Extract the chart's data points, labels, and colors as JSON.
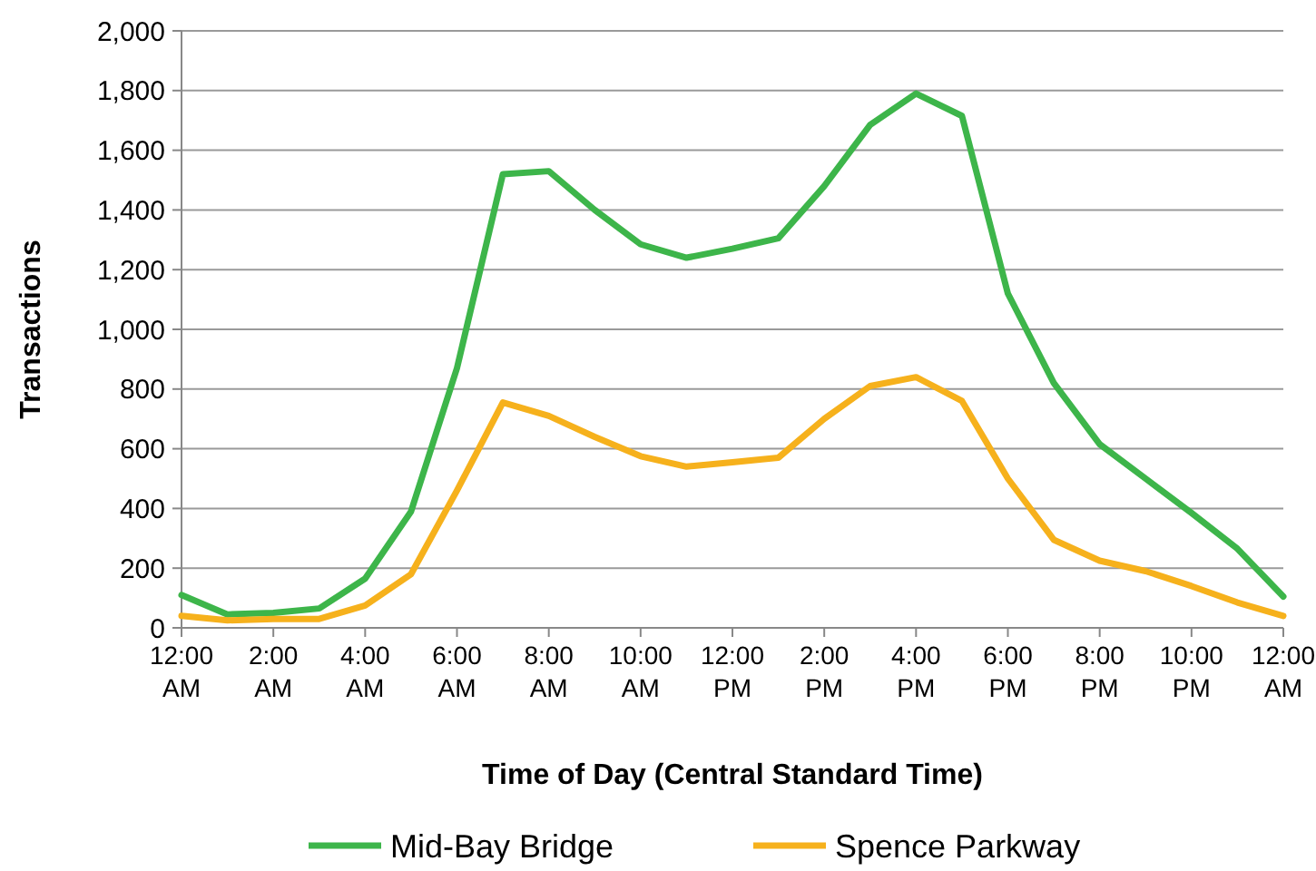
{
  "chart_data": {
    "type": "line",
    "xlabel": "Time of Day (Central Standard Time)",
    "ylabel": "Transactions",
    "x": [
      0,
      1,
      2,
      3,
      4,
      5,
      6,
      7,
      8,
      9,
      10,
      11,
      12,
      13,
      14,
      15,
      16,
      17,
      18,
      19,
      20,
      21,
      22,
      23,
      24
    ],
    "series": [
      {
        "name": "Mid-Bay Bridge",
        "color": "#3db54a",
        "values": [
          110,
          45,
          50,
          65,
          165,
          390,
          870,
          1520,
          1530,
          1400,
          1285,
          1240,
          1270,
          1305,
          1480,
          1685,
          1790,
          1715,
          1120,
          820,
          615,
          500,
          385,
          265,
          105
        ]
      },
      {
        "name": "Spence Parkway",
        "color": "#f6b11c",
        "values": [
          40,
          25,
          30,
          30,
          75,
          180,
          460,
          755,
          710,
          640,
          575,
          540,
          555,
          570,
          700,
          810,
          840,
          760,
          500,
          295,
          225,
          190,
          140,
          85,
          40
        ]
      }
    ],
    "xlim": [
      0,
      24
    ],
    "xticks": [
      {
        "value": 0,
        "label": "12:00 AM"
      },
      {
        "value": 2,
        "label": "2:00 AM"
      },
      {
        "value": 4,
        "label": "4:00 AM"
      },
      {
        "value": 6,
        "label": "6:00 AM"
      },
      {
        "value": 8,
        "label": "8:00 AM"
      },
      {
        "value": 10,
        "label": "10:00 AM"
      },
      {
        "value": 12,
        "label": "12:00 PM"
      },
      {
        "value": 14,
        "label": "2:00 PM"
      },
      {
        "value": 16,
        "label": "4:00 PM"
      },
      {
        "value": 18,
        "label": "6:00 PM"
      },
      {
        "value": 20,
        "label": "8:00 PM"
      },
      {
        "value": 22,
        "label": "10:00 PM"
      },
      {
        "value": 24,
        "label": "12:00 AM"
      }
    ],
    "ylim": [
      0,
      2000
    ],
    "yticks": [
      {
        "value": 0,
        "label": "0"
      },
      {
        "value": 200,
        "label": "200"
      },
      {
        "value": 400,
        "label": "400"
      },
      {
        "value": 600,
        "label": "600"
      },
      {
        "value": 800,
        "label": "800"
      },
      {
        "value": 1000,
        "label": "1,000"
      },
      {
        "value": 1200,
        "label": "1,200"
      },
      {
        "value": 1400,
        "label": "1,400"
      },
      {
        "value": 1600,
        "label": "1,600"
      },
      {
        "value": 1800,
        "label": "1,800"
      },
      {
        "value": 2000,
        "label": "2,000"
      }
    ],
    "grid": "y",
    "legend": "bottom",
    "marker": "none",
    "line_style": "solid"
  }
}
